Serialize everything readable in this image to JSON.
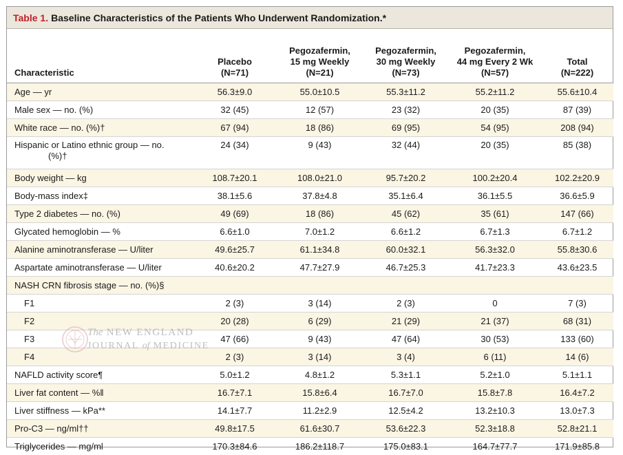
{
  "title": {
    "label": "Table 1.",
    "text": "Baseline Characteristics of the Patients Who Underwent Randomization.*"
  },
  "columns": [
    {
      "lines": [
        "Characteristic"
      ]
    },
    {
      "lines": [
        "Placebo",
        "(N=71)"
      ]
    },
    {
      "lines": [
        "Pegozafermin,",
        "15 mg Weekly",
        "(N=21)"
      ]
    },
    {
      "lines": [
        "Pegozafermin,",
        "30 mg Weekly",
        "(N=73)"
      ]
    },
    {
      "lines": [
        "Pegozafermin,",
        "44 mg Every 2 Wk",
        "(N=57)"
      ]
    },
    {
      "lines": [
        "Total",
        "(N=222)"
      ]
    }
  ],
  "rows": [
    {
      "label": "Age — yr",
      "values": [
        "56.3±9.0",
        "55.0±10.5",
        "55.3±11.2",
        "55.2±11.2",
        "55.6±10.4"
      ]
    },
    {
      "label": "Male sex — no. (%)",
      "values": [
        "32 (45)",
        "12 (57)",
        "23 (32)",
        "20 (35)",
        "87 (39)"
      ]
    },
    {
      "label": "White race — no. (%)†",
      "values": [
        "67 (94)",
        "18 (86)",
        "69 (95)",
        "54 (95)",
        "208 (94)"
      ]
    },
    {
      "label": "Hispanic or Latino ethnic group — no.",
      "label_line2": "(%)†",
      "values": [
        "24 (34)",
        "9 (43)",
        "32 (44)",
        "20 (35)",
        "85 (38)"
      ]
    },
    {
      "label": "Body weight — kg",
      "values": [
        "108.7±20.1",
        "108.0±21.0",
        "95.7±20.2",
        "100.2±20.4",
        "102.2±20.9"
      ]
    },
    {
      "label": "Body-mass index‡",
      "values": [
        "38.1±5.6",
        "37.8±4.8",
        "35.1±6.4",
        "36.1±5.5",
        "36.6±5.9"
      ]
    },
    {
      "label": "Type 2 diabetes — no. (%)",
      "values": [
        "49 (69)",
        "18 (86)",
        "45 (62)",
        "35 (61)",
        "147 (66)"
      ]
    },
    {
      "label": "Glycated hemoglobin — %",
      "values": [
        "6.6±1.0",
        "7.0±1.2",
        "6.6±1.2",
        "6.7±1.3",
        "6.7±1.2"
      ]
    },
    {
      "label": "Alanine aminotransferase — U/liter",
      "values": [
        "49.6±25.7",
        "61.1±34.8",
        "60.0±32.1",
        "56.3±32.0",
        "55.8±30.6"
      ]
    },
    {
      "label": "Aspartate aminotransferase — U/liter",
      "values": [
        "40.6±20.2",
        "47.7±27.9",
        "46.7±25.3",
        "41.7±23.3",
        "43.6±23.5"
      ]
    },
    {
      "label": "NASH CRN fibrosis stage — no. (%)§",
      "values": [
        "",
        "",
        "",
        "",
        ""
      ]
    },
    {
      "label": "F1",
      "sub": true,
      "values": [
        "2 (3)",
        "3 (14)",
        "2 (3)",
        "0",
        "7 (3)"
      ]
    },
    {
      "label": "F2",
      "sub": true,
      "values": [
        "20 (28)",
        "6 (29)",
        "21 (29)",
        "21 (37)",
        "68 (31)"
      ]
    },
    {
      "label": "F3",
      "sub": true,
      "values": [
        "47 (66)",
        "9 (43)",
        "47 (64)",
        "30 (53)",
        "133 (60)"
      ]
    },
    {
      "label": "F4",
      "sub": true,
      "values": [
        "2 (3)",
        "3 (14)",
        "3 (4)",
        "6 (11)",
        "14 (6)"
      ]
    },
    {
      "label": "NAFLD activity score¶",
      "values": [
        "5.0±1.2",
        "4.8±1.2",
        "5.3±1.1",
        "5.2±1.0",
        "5.1±1.1"
      ]
    },
    {
      "label": "Liver fat content — %‖",
      "values": [
        "16.7±7.1",
        "15.8±6.4",
        "16.7±7.0",
        "15.8±7.8",
        "16.4±7.2"
      ]
    },
    {
      "label": "Liver stiffness — kPa**",
      "values": [
        "14.1±7.7",
        "11.2±2.9",
        "12.5±4.2",
        "13.2±10.3",
        "13.0±7.3"
      ]
    },
    {
      "label": "Pro-C3 — ng/ml††",
      "values": [
        "49.8±17.5",
        "61.6±30.7",
        "53.6±22.3",
        "52.3±18.8",
        "52.8±21.1"
      ]
    },
    {
      "label": "Triglycerides — mg/ml",
      "values": [
        "170.3±84.6",
        "186.2±118.7",
        "175.0±83.1",
        "164.7±77.7",
        "171.9±85.8"
      ]
    }
  ],
  "watermark": {
    "line1_prefix": "The",
    "line1": "NEW ENGLAND",
    "line2_a": "JOURNAL",
    "line2_of": "of",
    "line2_b": "MEDICINE"
  },
  "colors": {
    "title_accent": "#c0202a",
    "title_bar": "#ece7dc",
    "row_band": "#fbf5e4"
  }
}
